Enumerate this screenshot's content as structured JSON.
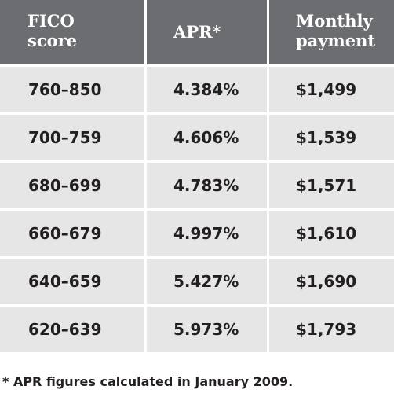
{
  "table": {
    "headers": {
      "fico": [
        "FICO",
        "score"
      ],
      "apr": "APR*",
      "payment": [
        "Monthly",
        "payment"
      ]
    },
    "rows": [
      {
        "fico": "760–850",
        "apr": "4.384%",
        "payment": "$1,499"
      },
      {
        "fico": "700–759",
        "apr": "4.606%",
        "payment": "$1,539"
      },
      {
        "fico": "680–699",
        "apr": "4.783%",
        "payment": "$1,571"
      },
      {
        "fico": "660–679",
        "apr": "4.997%",
        "payment": "$1,610"
      },
      {
        "fico": "640–659",
        "apr": "5.427%",
        "payment": "$1,690"
      },
      {
        "fico": "620–639",
        "apr": "5.973%",
        "payment": "$1,793"
      }
    ]
  },
  "footnote": "* APR figures calculated in January 2009.",
  "colors": {
    "header_background": "#6c6d70",
    "header_text": "#ffffff",
    "row_background": "#e6e6e7",
    "body_text": "#231f20"
  }
}
